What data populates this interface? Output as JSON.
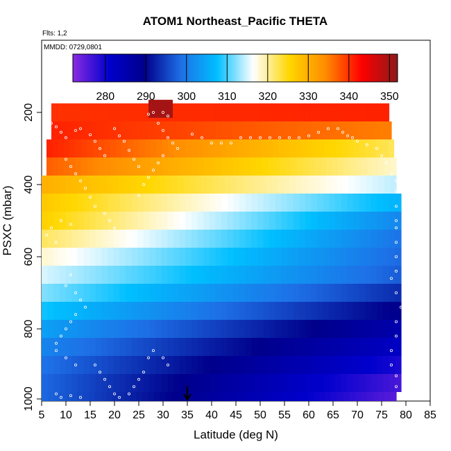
{
  "chart_data": {
    "type": "heatmap",
    "title": "ATOM1 Northeast_Pacific THETA",
    "notes": [
      "Flts: 1,2",
      "MMDD: 0729,0801"
    ],
    "xlabel": "Latitude (deg N)",
    "ylabel": "PSXC (mbar)",
    "xlim": [
      5,
      85
    ],
    "ylim": [
      1000,
      0
    ],
    "xticks": [
      5,
      10,
      15,
      20,
      25,
      30,
      35,
      40,
      45,
      50,
      55,
      60,
      65,
      70,
      75,
      80,
      85
    ],
    "yticks": [
      200,
      400,
      600,
      800,
      1000
    ],
    "colorbar": {
      "min": 272,
      "max": 352,
      "ticks": [
        280,
        290,
        300,
        310,
        320,
        330,
        340,
        350
      ],
      "stops": [
        "#8a2be2",
        "#0000cd",
        "#00008b",
        "#1e6fe6",
        "#00bfff",
        "#ffffff",
        "#ffd700",
        "#ff8c00",
        "#ff0000",
        "#8b1a1a"
      ]
    },
    "marker": {
      "x": 35,
      "label": "arrow"
    },
    "rows": [
      {
        "p": 200,
        "x0": 7,
        "x1": 76.5,
        "bottom": 340,
        "top": 341
      },
      {
        "p": 250,
        "x0": 7,
        "x1": 77,
        "bottom": 341,
        "top": 335
      },
      {
        "p": 300,
        "x0": 6,
        "x1": 77.5,
        "bottom": 341,
        "top": 322
      },
      {
        "p": 350,
        "x0": 6,
        "x1": 78,
        "bottom": 337,
        "top": 318
      },
      {
        "p": 400,
        "x0": 5,
        "x1": 78,
        "bottom": 330,
        "top": 314
      },
      {
        "p": 450,
        "x0": 5,
        "x1": 79,
        "bottom": 327,
        "top": 306
      },
      {
        "p": 500,
        "x0": 5,
        "x1": 79,
        "bottom": 326,
        "top": 301
      },
      {
        "p": 550,
        "x0": 5,
        "x1": 79,
        "bottom": 322,
        "top": 299
      },
      {
        "p": 600,
        "x0": 5,
        "x1": 79,
        "bottom": 318,
        "top": 298
      },
      {
        "p": 650,
        "x0": 5,
        "x1": 79,
        "bottom": 315,
        "top": 297
      },
      {
        "p": 700,
        "x0": 5,
        "x1": 79,
        "bottom": 312,
        "top": 293
      },
      {
        "p": 750,
        "x0": 5,
        "x1": 79,
        "bottom": 308,
        "top": 289
      },
      {
        "p": 800,
        "x0": 5,
        "x1": 79,
        "bottom": 304,
        "top": 285
      },
      {
        "p": 850,
        "x0": 5,
        "x1": 79,
        "bottom": 301,
        "top": 282
      },
      {
        "p": 900,
        "x0": 5,
        "x1": 79,
        "bottom": 299,
        "top": 279
      },
      {
        "p": 950,
        "x0": 5,
        "x1": 79,
        "bottom": 298,
        "top": 276
      },
      {
        "p": 1000,
        "x0": 5,
        "x1": 78,
        "bottom": 298,
        "top": 275
      }
    ],
    "extra_block": {
      "x0": 27,
      "x1": 32,
      "p0": 165,
      "p1": 215,
      "value": 350
    },
    "points": [
      [
        7,
        230
      ],
      [
        8,
        240
      ],
      [
        9,
        255
      ],
      [
        10,
        270
      ],
      [
        12,
        250
      ],
      [
        13,
        245
      ],
      [
        15,
        262
      ],
      [
        16,
        280
      ],
      [
        17,
        300
      ],
      [
        18,
        320
      ],
      [
        20,
        245
      ],
      [
        21,
        265
      ],
      [
        22,
        280
      ],
      [
        23,
        305
      ],
      [
        24,
        330
      ],
      [
        25,
        350
      ],
      [
        10,
        330
      ],
      [
        11,
        350
      ],
      [
        12,
        370
      ],
      [
        13,
        390
      ],
      [
        14,
        410
      ],
      [
        15,
        435
      ],
      [
        16,
        460
      ],
      [
        18,
        480
      ],
      [
        19,
        500
      ],
      [
        20,
        520
      ],
      [
        11,
        510
      ],
      [
        9,
        500
      ],
      [
        7,
        520
      ],
      [
        6,
        540
      ],
      [
        8,
        560
      ],
      [
        27,
        205
      ],
      [
        28,
        200
      ],
      [
        30,
        200
      ],
      [
        31,
        210
      ],
      [
        29,
        230
      ],
      [
        30,
        250
      ],
      [
        31,
        270
      ],
      [
        32,
        285
      ],
      [
        33,
        300
      ],
      [
        30,
        320
      ],
      [
        29,
        340
      ],
      [
        28,
        360
      ],
      [
        27,
        380
      ],
      [
        26,
        400
      ],
      [
        25,
        430
      ],
      [
        36,
        260
      ],
      [
        38,
        270
      ],
      [
        40,
        285
      ],
      [
        42,
        285
      ],
      [
        44,
        285
      ],
      [
        46,
        270
      ],
      [
        48,
        270
      ],
      [
        50,
        270
      ],
      [
        52,
        270
      ],
      [
        54,
        270
      ],
      [
        56,
        270
      ],
      [
        58,
        270
      ],
      [
        60,
        265
      ],
      [
        62,
        255
      ],
      [
        64,
        245
      ],
      [
        66,
        245
      ],
      [
        67,
        255
      ],
      [
        68,
        265
      ],
      [
        69,
        270
      ],
      [
        70,
        280
      ],
      [
        72,
        290
      ],
      [
        74,
        300
      ],
      [
        75,
        320
      ],
      [
        76,
        340
      ],
      [
        77,
        370
      ],
      [
        78,
        390
      ],
      [
        78,
        420
      ],
      [
        78,
        460
      ],
      [
        78,
        500
      ],
      [
        78,
        520
      ],
      [
        78,
        560
      ],
      [
        78,
        600
      ],
      [
        78,
        640
      ],
      [
        77,
        660
      ],
      [
        78,
        700
      ],
      [
        79,
        740
      ],
      [
        78,
        780
      ],
      [
        78,
        820
      ],
      [
        77,
        860
      ],
      [
        77,
        900
      ],
      [
        78,
        930
      ],
      [
        78,
        960
      ],
      [
        79,
        980
      ],
      [
        9,
        600
      ],
      [
        10,
        620
      ],
      [
        11,
        650
      ],
      [
        10,
        680
      ],
      [
        12,
        700
      ],
      [
        13,
        720
      ],
      [
        14,
        740
      ],
      [
        12,
        760
      ],
      [
        11,
        780
      ],
      [
        10,
        800
      ],
      [
        9,
        820
      ],
      [
        8,
        840
      ],
      [
        8,
        860
      ],
      [
        10,
        880
      ],
      [
        12,
        900
      ],
      [
        16,
        900
      ],
      [
        17,
        920
      ],
      [
        18,
        940
      ],
      [
        19,
        960
      ],
      [
        20,
        980
      ],
      [
        21,
        990
      ],
      [
        23,
        980
      ],
      [
        24,
        960
      ],
      [
        25,
        940
      ],
      [
        26,
        920
      ],
      [
        27,
        880
      ],
      [
        28,
        860
      ],
      [
        30,
        880
      ],
      [
        31,
        900
      ],
      [
        8,
        980
      ],
      [
        9,
        990
      ],
      [
        11,
        985
      ],
      [
        13,
        990
      ]
    ]
  }
}
